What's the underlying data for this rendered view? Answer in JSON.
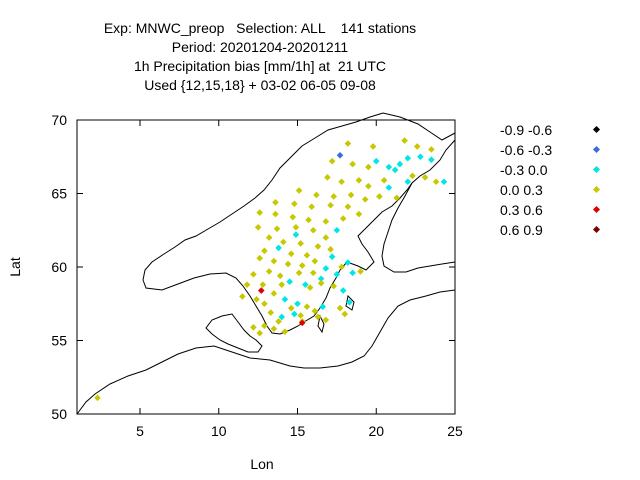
{
  "title_lines": [
    "Exp: MNWC_preop   Selection: ALL    141 stations",
    "Period: 20201204-20201211",
    "1h Precipitation bias [mm/1h] at  21 UTC",
    "Used {12,15,18} + 03-02 06-05 09-08"
  ],
  "colors": {
    "-0.9 -0.6": "#000000",
    "-0.6 -0.3": "#3a6fd8",
    "-0.3 0.0": "#00e5e5",
    "0.0 0.3": "#c8c800",
    "0.3 0.6": "#e00000",
    "0.6 0.9": "#7a0000",
    "coastline": "#000000"
  },
  "chart_data": {
    "type": "scatter",
    "title": "Exp: MNWC_preop   Selection: ALL    141 stations",
    "subtitle": "Period: 20201204-20201211 | 1h Precipitation bias [mm/1h] at  21 UTC | Used {12,15,18} + 03-02 06-05 09-08",
    "xlabel": "Lon",
    "ylabel": "Lat",
    "xlim": [
      1,
      25
    ],
    "ylim": [
      50,
      70
    ],
    "xticks": [
      5,
      10,
      15,
      20,
      25
    ],
    "yticks": [
      50,
      55,
      60,
      65,
      70
    ],
    "grid": false,
    "legend_position": "right",
    "legend": [
      "-0.9 -0.6",
      "-0.6 -0.3",
      "-0.3 0.0",
      "0.0 0.3",
      "0.3 0.6",
      "0.6 0.9"
    ],
    "series": [
      {
        "name": "-0.9 -0.6",
        "points": []
      },
      {
        "name": "-0.6 -0.3",
        "points": [
          [
            17.7,
            67.6
          ]
        ]
      },
      {
        "name": "-0.3 0.0",
        "points": [
          [
            20.0,
            67.2
          ],
          [
            20.8,
            66.8
          ],
          [
            21.5,
            67.0
          ],
          [
            22.0,
            67.4
          ],
          [
            22.8,
            67.5
          ],
          [
            23.5,
            67.3
          ],
          [
            24.3,
            65.8
          ],
          [
            21.2,
            66.6
          ],
          [
            22.0,
            65.8
          ],
          [
            20.8,
            65.4
          ],
          [
            17.5,
            62.5
          ],
          [
            14.9,
            62.2
          ],
          [
            13.8,
            61.3
          ],
          [
            17.2,
            60.7
          ],
          [
            18.2,
            60.3
          ],
          [
            16.8,
            59.9
          ],
          [
            18.5,
            59.6
          ],
          [
            17.5,
            59.5
          ],
          [
            16.5,
            59.2
          ],
          [
            14.5,
            59.0
          ],
          [
            15.5,
            58.8
          ],
          [
            14.2,
            57.8
          ],
          [
            15.0,
            57.5
          ],
          [
            16.6,
            57.3
          ],
          [
            18.3,
            57.6
          ],
          [
            17.9,
            58.4
          ],
          [
            14.8,
            56.8
          ],
          [
            14.0,
            56.6
          ]
        ]
      },
      {
        "name": "0.0 0.3",
        "points": [
          [
            21.8,
            68.6
          ],
          [
            22.6,
            68.2
          ],
          [
            23.5,
            68.0
          ],
          [
            18.2,
            68.4
          ],
          [
            19.8,
            68.2
          ],
          [
            17.2,
            67.2
          ],
          [
            18.5,
            67.0
          ],
          [
            19.5,
            66.8
          ],
          [
            16.9,
            66.1
          ],
          [
            17.8,
            65.8
          ],
          [
            18.9,
            65.9
          ],
          [
            19.5,
            65.5
          ],
          [
            20.5,
            65.9
          ],
          [
            22.3,
            66.2
          ],
          [
            23.1,
            66.1
          ],
          [
            23.8,
            65.8
          ],
          [
            15.1,
            65.2
          ],
          [
            16.2,
            64.9
          ],
          [
            17.3,
            64.8
          ],
          [
            18.4,
            64.9
          ],
          [
            19.3,
            64.6
          ],
          [
            20.2,
            64.8
          ],
          [
            21.3,
            64.7
          ],
          [
            13.6,
            64.4
          ],
          [
            14.8,
            64.3
          ],
          [
            15.9,
            64.1
          ],
          [
            17.1,
            64.2
          ],
          [
            18.2,
            64.1
          ],
          [
            12.6,
            63.7
          ],
          [
            13.6,
            63.6
          ],
          [
            14.7,
            63.4
          ],
          [
            15.7,
            63.2
          ],
          [
            16.8,
            63.1
          ],
          [
            17.9,
            63.3
          ],
          [
            18.9,
            63.6
          ],
          [
            12.5,
            62.7
          ],
          [
            13.7,
            62.6
          ],
          [
            14.9,
            62.7
          ],
          [
            16.0,
            62.5
          ],
          [
            16.8,
            62.0
          ],
          [
            13.2,
            62.0
          ],
          [
            14.1,
            61.7
          ],
          [
            15.2,
            61.6
          ],
          [
            16.3,
            61.4
          ],
          [
            17.1,
            61.2
          ],
          [
            12.9,
            61.1
          ],
          [
            14.6,
            60.9
          ],
          [
            15.6,
            60.8
          ],
          [
            16.1,
            60.4
          ],
          [
            12.6,
            60.6
          ],
          [
            13.5,
            60.4
          ],
          [
            14.4,
            60.2
          ],
          [
            15.3,
            60.1
          ],
          [
            13.2,
            59.7
          ],
          [
            12.2,
            59.5
          ],
          [
            13.9,
            59.4
          ],
          [
            15.1,
            59.6
          ],
          [
            16.0,
            59.6
          ],
          [
            19.0,
            59.7
          ],
          [
            17.8,
            60.0
          ],
          [
            11.8,
            58.8
          ],
          [
            12.8,
            58.8
          ],
          [
            13.5,
            58.2
          ],
          [
            14.0,
            58.8
          ],
          [
            15.8,
            58.6
          ],
          [
            16.5,
            58.9
          ],
          [
            17.3,
            58.7
          ],
          [
            11.5,
            58.0
          ],
          [
            12.4,
            57.8
          ],
          [
            12.9,
            57.5
          ],
          [
            14.6,
            57.2
          ],
          [
            15.6,
            57.3
          ],
          [
            16.1,
            57.0
          ],
          [
            17.7,
            57.2
          ],
          [
            13.3,
            56.9
          ],
          [
            13.8,
            56.3
          ],
          [
            15.2,
            56.7
          ],
          [
            16.3,
            56.6
          ],
          [
            16.8,
            56.4
          ],
          [
            18.0,
            56.8
          ],
          [
            12.9,
            56.0
          ],
          [
            13.5,
            55.8
          ],
          [
            14.2,
            55.6
          ],
          [
            15.3,
            56.3
          ],
          [
            12.2,
            55.9
          ],
          [
            12.6,
            55.5
          ],
          [
            2.3,
            51.1
          ]
        ]
      },
      {
        "name": "0.3 0.6",
        "points": [
          [
            12.7,
            58.4
          ],
          [
            15.3,
            56.2
          ]
        ]
      },
      {
        "name": "0.6 0.9",
        "points": []
      }
    ]
  }
}
